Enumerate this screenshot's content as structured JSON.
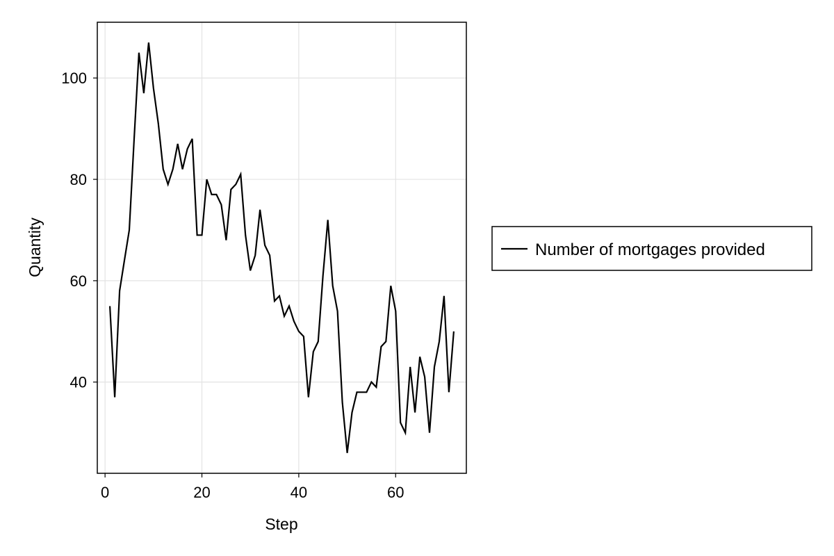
{
  "chart_data": {
    "type": "line",
    "title": "",
    "xlabel": "Step",
    "ylabel": "Quantity",
    "xlim": [
      -1.6,
      74.6
    ],
    "ylim": [
      22,
      111
    ],
    "xticks": [
      0,
      20,
      40,
      60
    ],
    "yticks": [
      40,
      60,
      80,
      100
    ],
    "grid": true,
    "legend_position": "right",
    "series": [
      {
        "name": "Number of mortgages provided",
        "color": "#000000",
        "x": [
          1,
          2,
          3,
          4,
          5,
          6,
          7,
          8,
          9,
          10,
          11,
          12,
          13,
          14,
          15,
          16,
          17,
          18,
          19,
          20,
          21,
          22,
          23,
          24,
          25,
          26,
          27,
          28,
          29,
          30,
          31,
          32,
          33,
          34,
          35,
          36,
          37,
          38,
          39,
          40,
          41,
          42,
          43,
          44,
          45,
          46,
          47,
          48,
          49,
          50,
          51,
          52,
          53,
          54,
          55,
          56,
          57,
          58,
          59,
          60,
          61,
          62,
          63,
          64,
          65,
          66,
          67,
          68,
          69,
          70,
          71,
          72
        ],
        "values": [
          55,
          37,
          58,
          64,
          70,
          88,
          105,
          97,
          107,
          98,
          91,
          82,
          79,
          82,
          87,
          82,
          86,
          88,
          69,
          69,
          80,
          77,
          77,
          75,
          68,
          78,
          79,
          81,
          69,
          62,
          65,
          74,
          67,
          65,
          56,
          57,
          53,
          55,
          52,
          50,
          49,
          37,
          46,
          48,
          61,
          72,
          59,
          54,
          36,
          26,
          34,
          38,
          38,
          38,
          40,
          39,
          47,
          48,
          59,
          54,
          32,
          30,
          43,
          34,
          45,
          41,
          30,
          43,
          48,
          57,
          38,
          50
        ]
      }
    ]
  }
}
